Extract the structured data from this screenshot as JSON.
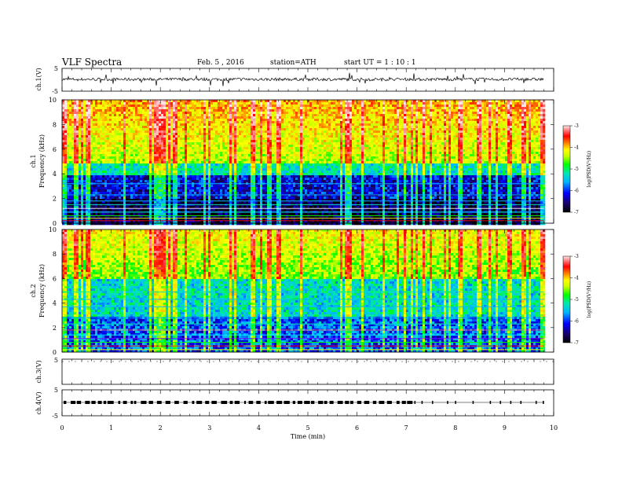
{
  "header": {
    "title": "VLF  Spectra",
    "date": "Feb. 5  , 2016",
    "station": "station=ATH",
    "start": "start  UT  =   1  : 10 : 1"
  },
  "chart_data": [
    {
      "type": "line",
      "panel": "ch1-waveform",
      "ylabel": "ch.1(V)",
      "ylim": [
        -5,
        5
      ],
      "yticks": [
        "5",
        "-5"
      ],
      "xlim": [
        0,
        10
      ],
      "data_extent_min": [
        0,
        9.8
      ],
      "baseline_v": 0.2
    },
    {
      "type": "heatmap",
      "panel": "ch1-spectrogram",
      "ylabel": "ch.1\nFrequency  (kHz)",
      "ylabel_lines": [
        "ch.1",
        "Frequency  (kHz)"
      ],
      "ylim": [
        0,
        10
      ],
      "yticks": [
        "0",
        "2",
        "4",
        "6",
        "8",
        "10"
      ],
      "xlim": [
        0,
        10
      ],
      "data_extent_min": [
        0,
        9.8
      ],
      "colorbar": {
        "label": "log(PSD(V²/Hz)",
        "range": [
          -7,
          -3
        ],
        "ticks": [
          "-3",
          "-4",
          "-5",
          "-6",
          "-7"
        ]
      }
    },
    {
      "type": "heatmap",
      "panel": "ch2-spectrogram",
      "ylabel": "ch.2\nFrequency  (kHz)",
      "ylabel_lines": [
        "ch.2",
        "Frequency  (kHz)"
      ],
      "ylim": [
        0,
        10
      ],
      "yticks": [
        "0",
        "2",
        "4",
        "6",
        "8",
        "10"
      ],
      "xlim": [
        0,
        10
      ],
      "data_extent_min": [
        0,
        9.8
      ],
      "colorbar": {
        "label": "log(PSD(V²/Hz)",
        "range": [
          -7,
          -3
        ],
        "ticks": [
          "-3",
          "-4",
          "-5",
          "-6",
          "-7"
        ]
      }
    },
    {
      "type": "line",
      "panel": "ch3-waveform",
      "ylabel": "ch.3(V)",
      "ylim": [
        -5,
        5
      ],
      "yticks": [
        "5"
      ],
      "xlim": [
        0,
        10
      ]
    },
    {
      "type": "line",
      "panel": "ch4-waveform",
      "ylabel": "ch.4(V)",
      "ylim": [
        -5,
        5
      ],
      "yticks": [
        "5",
        "-5"
      ],
      "xlim": [
        0,
        10
      ],
      "data_extent_min": [
        0,
        9.8
      ],
      "pulse_level_v": 0
    }
  ],
  "xaxis": {
    "label": "Time  (min)",
    "ticks": [
      "0",
      "1",
      "2",
      "3",
      "4",
      "5",
      "6",
      "7",
      "8",
      "9",
      "10"
    ]
  },
  "colors": {
    "frame": "#000000",
    "colormap": [
      "#000000",
      "#1a0066",
      "#0000ff",
      "#00b4ff",
      "#00e6b4",
      "#00ff00",
      "#c8ff00",
      "#ffff00",
      "#ff8000",
      "#ff0000",
      "#ff8080",
      "#ffe6e6"
    ]
  }
}
